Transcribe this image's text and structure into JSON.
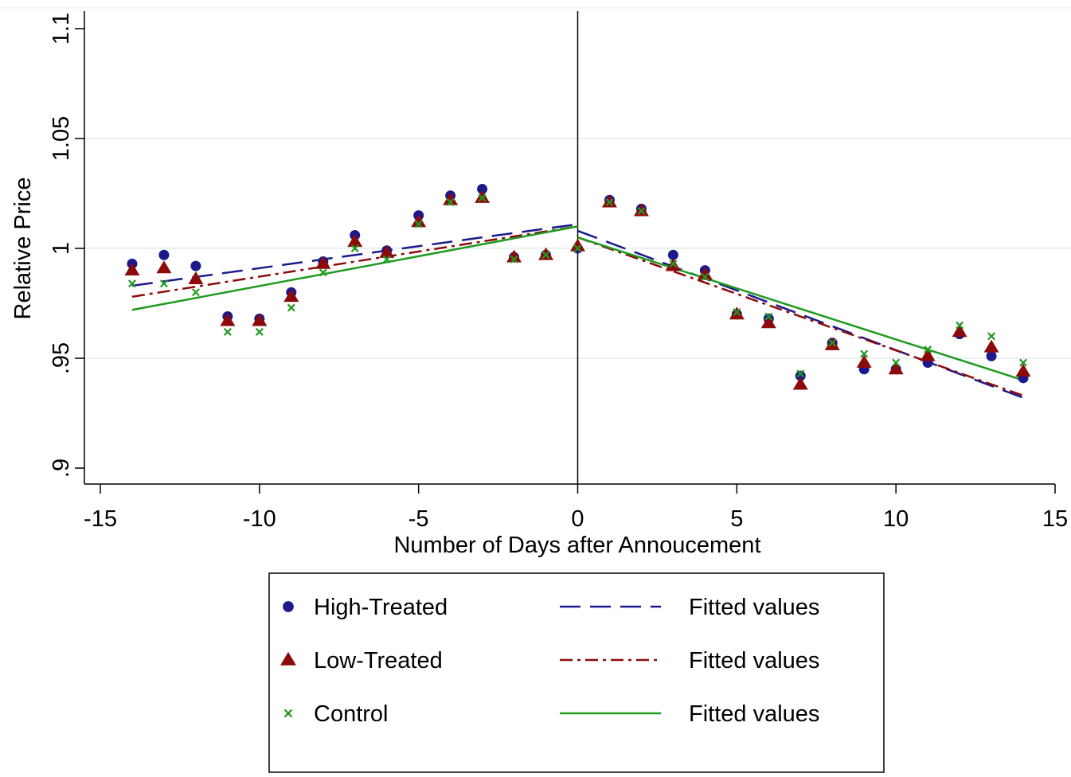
{
  "chart_data": {
    "type": "scatter",
    "xlabel": "Number of Days after Annoucement",
    "ylabel": "Relative Price",
    "xlim": [
      -15,
      15
    ],
    "ylim": [
      0.9,
      1.1
    ],
    "x_ticks": [
      -15,
      -10,
      -5,
      0,
      5,
      10,
      15
    ],
    "x_tick_labels": [
      "-15",
      "-10",
      "-5",
      "0",
      "5",
      "10",
      "15"
    ],
    "y_ticks": [
      0.9,
      0.95,
      1.0,
      1.05,
      1.1
    ],
    "y_tick_labels": [
      ".9",
      ".95",
      "1",
      "1.05",
      "1.1"
    ],
    "grid": "horizontal",
    "vertical_reference_line": 0,
    "legend_position": "bottom",
    "x": [
      -14,
      -13,
      -12,
      -11,
      -10,
      -9,
      -8,
      -7,
      -6,
      -5,
      -4,
      -3,
      -2,
      -1,
      0,
      1,
      2,
      3,
      4,
      5,
      6,
      7,
      8,
      9,
      10,
      11,
      12,
      13,
      14
    ],
    "series": [
      {
        "name": "High-Treated",
        "marker": "circle",
        "color": "#1a1a8c",
        "values": [
          0.993,
          0.997,
          0.992,
          0.969,
          0.968,
          0.98,
          0.994,
          1.006,
          0.999,
          1.015,
          1.024,
          1.027,
          0.996,
          0.997,
          1.0,
          1.022,
          1.018,
          0.997,
          0.99,
          0.97,
          0.968,
          0.942,
          0.957,
          0.945,
          0.945,
          0.948,
          0.961,
          0.951,
          0.941
        ]
      },
      {
        "name": "Low-Treated",
        "marker": "triangle",
        "color": "#8c0a0a",
        "values": [
          0.99,
          0.991,
          0.986,
          0.967,
          0.967,
          0.978,
          0.993,
          1.003,
          0.998,
          1.012,
          1.022,
          1.023,
          0.996,
          0.997,
          1.001,
          1.021,
          1.017,
          0.992,
          0.988,
          0.97,
          0.966,
          0.938,
          0.956,
          0.948,
          0.945,
          0.951,
          0.962,
          0.955,
          0.944
        ]
      },
      {
        "name": "Control",
        "marker": "x",
        "color": "#1f9a1f",
        "values": [
          0.984,
          0.984,
          0.98,
          0.962,
          0.962,
          0.973,
          0.989,
          1.0,
          0.995,
          1.011,
          1.021,
          1.023,
          0.995,
          0.997,
          1.0,
          1.021,
          1.017,
          0.993,
          0.987,
          0.971,
          0.969,
          0.943,
          0.957,
          0.952,
          0.948,
          0.954,
          0.965,
          0.96,
          0.948
        ]
      }
    ],
    "fitted_lines": [
      {
        "name": "Fitted values",
        "style": "long-dash",
        "color": "#1a1a8c",
        "segments": [
          {
            "x": [
              -14,
              0
            ],
            "y": [
              0.983,
              1.011
            ]
          },
          {
            "x": [
              0,
              14
            ],
            "y": [
              1.008,
              0.932
            ]
          }
        ]
      },
      {
        "name": "Fitted values",
        "style": "dash-dot",
        "color": "#8c0a0a",
        "segments": [
          {
            "x": [
              -14,
              0
            ],
            "y": [
              0.978,
              1.01
            ]
          },
          {
            "x": [
              0,
              14
            ],
            "y": [
              1.005,
              0.933
            ]
          }
        ]
      },
      {
        "name": "Fitted values",
        "style": "solid",
        "color": "#1f9a1f",
        "segments": [
          {
            "x": [
              -14,
              0
            ],
            "y": [
              0.972,
              1.01
            ]
          },
          {
            "x": [
              0,
              14
            ],
            "y": [
              1.005,
              0.94
            ]
          }
        ]
      }
    ],
    "legend": [
      {
        "label": "High-Treated",
        "kind": "marker",
        "marker": "circle",
        "color": "#1a1a8c"
      },
      {
        "label": "Fitted values",
        "kind": "line",
        "style": "long-dash",
        "color": "#1a1a8c"
      },
      {
        "label": "Low-Treated",
        "kind": "marker",
        "marker": "triangle",
        "color": "#8c0a0a"
      },
      {
        "label": "Fitted values",
        "kind": "line",
        "style": "dash-dot",
        "color": "#8c0a0a"
      },
      {
        "label": "Control",
        "kind": "marker",
        "marker": "x",
        "color": "#1f9a1f"
      },
      {
        "label": "Fitted values",
        "kind": "line",
        "style": "solid",
        "color": "#1f9a1f"
      }
    ]
  }
}
